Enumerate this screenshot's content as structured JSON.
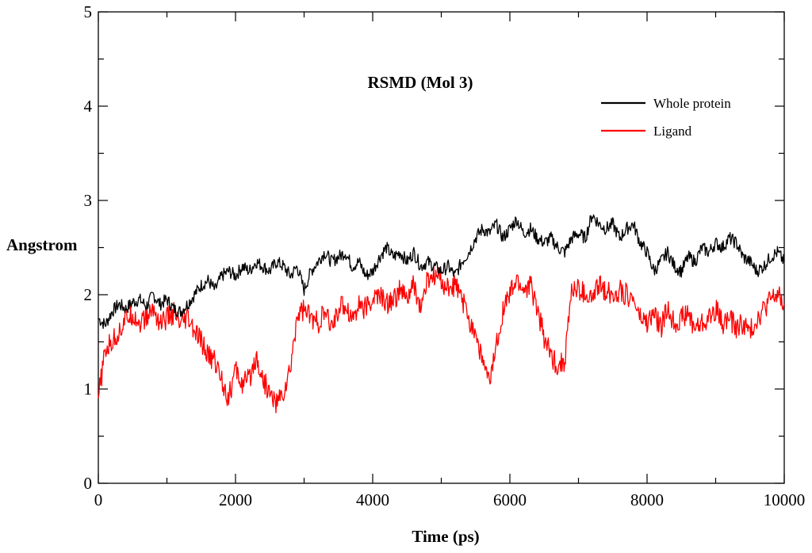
{
  "chart_data": {
    "type": "line",
    "title": "RSMD (Mol 3)",
    "xlabel": "Time (ps)",
    "ylabel": "Angstrom",
    "xlim": [
      0,
      10000
    ],
    "ylim": [
      0,
      5
    ],
    "x_ticks": [
      0,
      2000,
      4000,
      6000,
      8000,
      10000
    ],
    "x_tick_labels": [
      "0",
      "2000",
      "4000",
      "6000",
      "8000",
      "10000"
    ],
    "y_ticks": [
      0,
      1,
      2,
      3,
      4,
      5
    ],
    "y_tick_labels": [
      "0",
      "1",
      "2",
      "3",
      "4",
      "5"
    ],
    "grid": false,
    "legend_position": "top-right",
    "series": [
      {
        "name": "Whole protein",
        "color": "#000000",
        "x": [
          0,
          100,
          200,
          300,
          400,
          500,
          600,
          700,
          800,
          900,
          1000,
          1100,
          1200,
          1300,
          1400,
          1500,
          1600,
          1700,
          1800,
          1900,
          2000,
          2100,
          2200,
          2300,
          2400,
          2500,
          2600,
          2700,
          2800,
          2900,
          3000,
          3100,
          3200,
          3300,
          3400,
          3500,
          3600,
          3700,
          3800,
          3900,
          4000,
          4100,
          4200,
          4300,
          4400,
          4500,
          4600,
          4700,
          4800,
          4900,
          5000,
          5100,
          5200,
          5300,
          5400,
          5500,
          5600,
          5700,
          5800,
          5900,
          6000,
          6100,
          6200,
          6300,
          6400,
          6500,
          6600,
          6700,
          6800,
          6900,
          7000,
          7100,
          7200,
          7300,
          7400,
          7500,
          7600,
          7700,
          7800,
          7900,
          8000,
          8100,
          8200,
          8300,
          8400,
          8500,
          8600,
          8700,
          8800,
          8900,
          9000,
          9100,
          9200,
          9300,
          9400,
          9500,
          9600,
          9700,
          9800,
          9900,
          10000
        ],
        "values": [
          1.75,
          1.68,
          1.82,
          1.9,
          1.85,
          1.92,
          1.95,
          1.88,
          2.0,
          1.9,
          1.95,
          1.85,
          1.82,
          1.9,
          2.0,
          2.1,
          2.15,
          2.05,
          2.2,
          2.25,
          2.2,
          2.3,
          2.25,
          2.35,
          2.3,
          2.25,
          2.35,
          2.3,
          2.2,
          2.3,
          2.05,
          2.25,
          2.35,
          2.45,
          2.35,
          2.4,
          2.45,
          2.3,
          2.35,
          2.2,
          2.25,
          2.4,
          2.5,
          2.4,
          2.45,
          2.35,
          2.45,
          2.3,
          2.35,
          2.3,
          2.25,
          2.3,
          2.2,
          2.35,
          2.45,
          2.6,
          2.7,
          2.65,
          2.75,
          2.6,
          2.7,
          2.8,
          2.65,
          2.7,
          2.6,
          2.55,
          2.6,
          2.5,
          2.45,
          2.6,
          2.65,
          2.6,
          2.85,
          2.75,
          2.7,
          2.75,
          2.6,
          2.7,
          2.75,
          2.55,
          2.45,
          2.25,
          2.35,
          2.45,
          2.3,
          2.25,
          2.4,
          2.35,
          2.5,
          2.45,
          2.55,
          2.5,
          2.6,
          2.55,
          2.4,
          2.35,
          2.25,
          2.3,
          2.4,
          2.45,
          2.35
        ]
      },
      {
        "name": "Ligand",
        "color": "#ff0000",
        "x": [
          0,
          100,
          200,
          300,
          400,
          500,
          600,
          700,
          800,
          900,
          1000,
          1100,
          1200,
          1300,
          1400,
          1500,
          1600,
          1700,
          1800,
          1900,
          2000,
          2100,
          2200,
          2300,
          2400,
          2500,
          2600,
          2700,
          2800,
          2900,
          3000,
          3100,
          3200,
          3300,
          3400,
          3500,
          3600,
          3700,
          3800,
          3900,
          4000,
          4100,
          4200,
          4300,
          4400,
          4500,
          4600,
          4700,
          4800,
          4900,
          5000,
          5100,
          5200,
          5300,
          5400,
          5500,
          5600,
          5700,
          5800,
          5900,
          6000,
          6100,
          6200,
          6300,
          6400,
          6500,
          6600,
          6700,
          6800,
          6900,
          7000,
          7100,
          7200,
          7300,
          7400,
          7500,
          7600,
          7700,
          7800,
          7900,
          8000,
          8100,
          8200,
          8300,
          8400,
          8500,
          8600,
          8700,
          8800,
          8900,
          9000,
          9100,
          9200,
          9300,
          9400,
          9500,
          9600,
          9700,
          9800,
          9900,
          10000
        ],
        "values": [
          0.9,
          1.4,
          1.5,
          1.6,
          1.75,
          1.8,
          1.7,
          1.75,
          1.85,
          1.7,
          1.75,
          1.8,
          1.65,
          1.75,
          1.6,
          1.5,
          1.35,
          1.3,
          1.1,
          0.9,
          1.2,
          1.05,
          1.1,
          1.35,
          1.1,
          0.95,
          0.85,
          0.95,
          1.2,
          1.8,
          1.85,
          1.75,
          1.7,
          1.8,
          1.65,
          1.85,
          1.9,
          1.75,
          1.9,
          1.85,
          1.95,
          2.0,
          1.9,
          1.95,
          2.05,
          1.95,
          2.1,
          1.85,
          2.15,
          2.2,
          2.15,
          2.05,
          2.1,
          1.95,
          1.75,
          1.6,
          1.3,
          1.05,
          1.45,
          1.85,
          2.0,
          2.15,
          2.05,
          2.1,
          1.85,
          1.55,
          1.35,
          1.25,
          1.3,
          2.05,
          2.05,
          2.0,
          1.95,
          2.1,
          2.05,
          2.0,
          2.05,
          2.0,
          1.95,
          1.75,
          1.7,
          1.8,
          1.65,
          1.85,
          1.7,
          1.75,
          1.8,
          1.65,
          1.7,
          1.75,
          1.85,
          1.7,
          1.75,
          1.65,
          1.7,
          1.6,
          1.75,
          1.85,
          1.95,
          2.0,
          1.9
        ]
      }
    ]
  }
}
